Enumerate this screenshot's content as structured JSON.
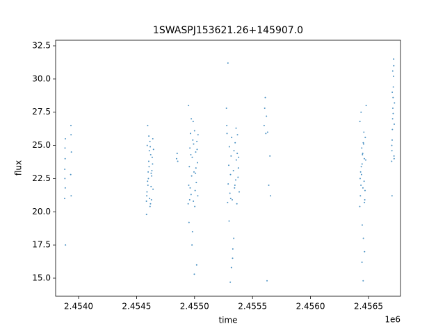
{
  "chart_data": {
    "type": "scatter",
    "title": "1SWASPJ153621.26+145907.0",
    "x_label": "time",
    "y_label": "flux",
    "x_offset_label": "1e6",
    "color": "#1f77b4",
    "xlim": [
      2453802,
      2456776
    ],
    "ylim": [
      13.64,
      32.92
    ],
    "xticks": [
      {
        "value": 2454000,
        "label": "2.4540"
      },
      {
        "value": 2454500,
        "label": "2.4545"
      },
      {
        "value": 2455000,
        "label": "2.4550"
      },
      {
        "value": 2455500,
        "label": "2.4555"
      },
      {
        "value": 2456000,
        "label": "2.4560"
      },
      {
        "value": 2456500,
        "label": "2.4565"
      }
    ],
    "yticks": [
      {
        "value": 15,
        "label": "15.0"
      },
      17.5,
      {
        "value": 20,
        "label": "20.0"
      },
      22.5,
      {
        "value": 25,
        "label": "25.0"
      },
      27.5,
      {
        "value": 30,
        "label": "30.0"
      },
      32.5
    ],
    "x": [
      2453880,
      2453882,
      2453884,
      2453886,
      2453881,
      2453885,
      2453883,
      2453887,
      2453932,
      2453935,
      2453938,
      2453934,
      2453936,
      2454585,
      2454590,
      2454595,
      2454600,
      2454605,
      2454610,
      2454615,
      2454620,
      2454625,
      2454630,
      2454635,
      2454640,
      2454588,
      2454598,
      2454608,
      2454618,
      2454628,
      2454638,
      2454592,
      2454602,
      2454612,
      2454622,
      2454632,
      2454642,
      2454586,
      2454606,
      2454626,
      2454646,
      2454596,
      2454616,
      2454845,
      2454850,
      2454855,
      2454945,
      2454950,
      2454955,
      2454960,
      2454965,
      2454970,
      2454975,
      2454980,
      2454985,
      2454990,
      2454995,
      2455000,
      2455005,
      2455010,
      2455015,
      2455020,
      2455025,
      2455030,
      2454948,
      2454958,
      2454968,
      2454978,
      2454988,
      2454998,
      2455008,
      2455018,
      2455028,
      2454952,
      2454972,
      2454992,
      2455012,
      2454962,
      2454982,
      2455002,
      2455022,
      2455275,
      2455280,
      2455285,
      2455290,
      2455295,
      2455300,
      2455305,
      2455310,
      2455315,
      2455320,
      2455325,
      2455330,
      2455335,
      2455340,
      2455345,
      2455350,
      2455355,
      2455360,
      2455365,
      2455370,
      2455375,
      2455380,
      2455385,
      2455278,
      2455298,
      2455318,
      2455338,
      2455358,
      2455378,
      2455288,
      2455308,
      2455328,
      2455348,
      2455368,
      2455312,
      2455600,
      2455605,
      2455610,
      2455615,
      2455620,
      2455625,
      2455630,
      2455640,
      2455650,
      2455655,
      2456425,
      2456430,
      2456435,
      2456440,
      2456445,
      2456450,
      2456455,
      2456460,
      2456465,
      2456470,
      2456428,
      2456438,
      2456448,
      2456458,
      2456468,
      2456432,
      2456442,
      2456452,
      2456462,
      2456472,
      2456426,
      2456436,
      2456446,
      2456456,
      2456466,
      2456476,
      2456480,
      2456444,
      2456454,
      2456464,
      2456700,
      2456702,
      2456704,
      2456706,
      2456708,
      2456710,
      2456712,
      2456714,
      2456716,
      2456718,
      2456720,
      2456722,
      2456724,
      2456701,
      2456705,
      2456709,
      2456713,
      2456717,
      2456721,
      2456703
    ],
    "y": [
      21.0,
      22.5,
      24.0,
      25.5,
      23.2,
      21.8,
      24.8,
      17.5,
      22.8,
      25.8,
      24.5,
      26.5,
      21.2,
      20.8,
      21.5,
      22.3,
      23.0,
      23.8,
      24.6,
      25.3,
      20.6,
      21.9,
      22.7,
      24.1,
      25.5,
      21.2,
      22.0,
      23.4,
      24.9,
      20.9,
      23.6,
      25.0,
      22.5,
      21.0,
      24.3,
      23.1,
      21.7,
      19.8,
      25.7,
      22.9,
      24.7,
      26.5,
      20.4,
      24.0,
      24.4,
      23.8,
      20.6,
      22.0,
      23.4,
      24.8,
      25.9,
      21.3,
      22.7,
      24.1,
      25.4,
      20.8,
      23.0,
      26.1,
      21.6,
      24.5,
      22.2,
      25.3,
      23.7,
      25.8,
      28.0,
      20.9,
      24.3,
      17.5,
      26.8,
      15.3,
      22.9,
      16.0,
      21.2,
      19.2,
      27.0,
      25.1,
      23.3,
      21.8,
      18.5,
      20.4,
      24.7,
      27.8,
      25.9,
      20.7,
      22.1,
      23.5,
      24.9,
      21.4,
      22.8,
      24.2,
      25.6,
      20.9,
      17.2,
      23.1,
      24.6,
      21.8,
      25.2,
      22.4,
      23.9,
      20.6,
      25.8,
      22.6,
      24.1,
      21.5,
      26.5,
      19.3,
      15.8,
      18.0,
      26.3,
      23.3,
      31.2,
      14.7,
      16.5,
      22.0,
      24.4,
      21.0,
      26.5,
      27.8,
      28.6,
      25.9,
      27.2,
      14.8,
      26.0,
      22.0,
      24.2,
      21.2,
      20.4,
      21.2,
      22.0,
      22.8,
      23.6,
      24.4,
      25.2,
      26.0,
      20.7,
      21.6,
      22.5,
      23.4,
      24.3,
      25.1,
      20.9,
      23.0,
      24.8,
      21.8,
      22.3,
      25.6,
      26.8,
      27.5,
      19.0,
      18.0,
      17.0,
      23.9,
      28.0,
      16.2,
      14.8,
      24.0,
      23.8,
      24.6,
      25.4,
      26.2,
      27.0,
      27.8,
      28.6,
      29.4,
      30.2,
      31.0,
      24.2,
      26.6,
      28.2,
      25.0,
      29.0,
      30.6,
      27.4,
      31.5,
      24.0,
      21.2
    ]
  }
}
